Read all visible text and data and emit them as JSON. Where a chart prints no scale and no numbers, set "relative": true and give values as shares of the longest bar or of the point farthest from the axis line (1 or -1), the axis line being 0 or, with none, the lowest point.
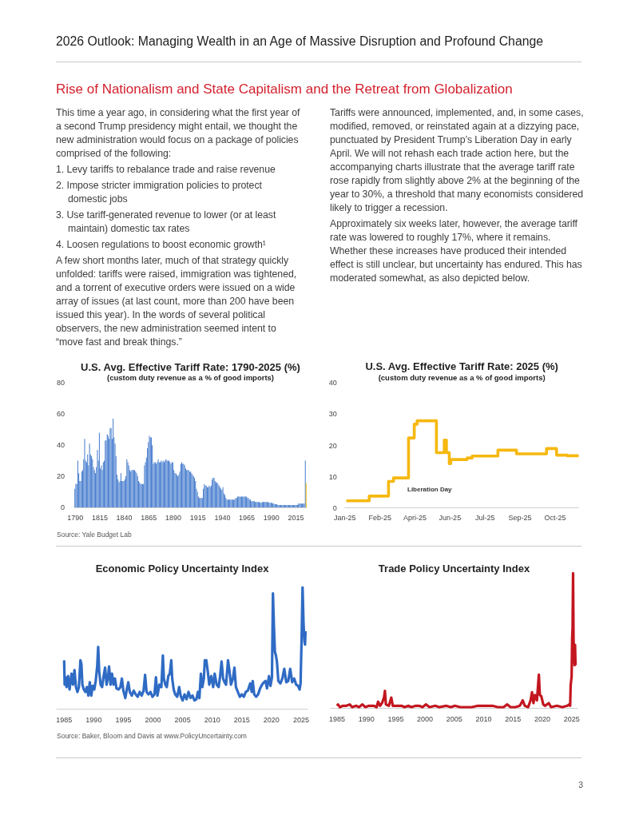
{
  "chart_data": [
    {
      "type": "other",
      "title": "2026 Outlook: Managing Wealth in an Age of Massive Disruption and Profound Change",
      "subtitle": "Rise of Nationalism and State Capitalism and the Retreat from Globalization",
      "annotations": [
        "This time a year ago, in considering what the first year of a second Trump presidency might entail, we thought the new administration would focus on a package of policies comprised of the following:",
        "1. Levy tariffs to rebalance trade and raise revenue",
        "2. Impose stricter immigration policies to protect domestic jobs",
        "3. Use tariff-generated revenue to lower (or at least maintain) domestic tax rates",
        "4. Loosen regulations to boost economic growth¹",
        "A few short months later, much of that strategy quickly unfolded: tariffs were raised, immigration was tightened, and a torrent of executive orders were issued on a wide array of issues (at last count, more than 200 have been issued this year). In the words of several political observers, the new administration seemed intent to “move fast and break things.”",
        "Tariffs were announced, implemented, and, in some cases, modified, removed, or reinstated again at a dizzying pace, punctuated by President Trump’s Liberation Day in early April. We will not rehash each trade action here, but the accompanying charts illustrate that the average tariff rate rose rapidly from slightly above 2% at the beginning of the year to 30%, a threshold that many economists considered likely to trigger a recession.",
        "Approximately six weeks later, however, the average tariff rate was lowered to roughly 17%, where it remains. Whether these increases have produced their intended effect is still unclear, but uncertainty has endured. This has moderated somewhat, as also depicted below."
      ]
    },
    {
      "type": "bar",
      "title": "U.S. Avg. Effective Tariff Rate: 1790-2025 (%)",
      "subtitle": "(custom duty revenue as a % of good imports)",
      "x": [
        1790,
        1791,
        1792,
        1793,
        1794,
        1795,
        1796,
        1797,
        1798,
        1799,
        1800,
        1801,
        1802,
        1803,
        1804,
        1805,
        1806,
        1807,
        1808,
        1809,
        1810,
        1811,
        1812,
        1813,
        1814,
        1815,
        1816,
        1817,
        1818,
        1819,
        1820,
        1821,
        1822,
        1823,
        1824,
        1825,
        1826,
        1827,
        1828,
        1829,
        1830,
        1831,
        1832,
        1833,
        1834,
        1835,
        1836,
        1837,
        1838,
        1839,
        1840,
        1841,
        1842,
        1843,
        1844,
        1845,
        1846,
        1847,
        1848,
        1849,
        1850,
        1851,
        1852,
        1853,
        1854,
        1855,
        1856,
        1857,
        1858,
        1859,
        1860,
        1861,
        1862,
        1863,
        1864,
        1865,
        1866,
        1867,
        1868,
        1869,
        1870,
        1871,
        1872,
        1873,
        1874,
        1875,
        1876,
        1877,
        1878,
        1879,
        1880,
        1881,
        1882,
        1883,
        1884,
        1885,
        1886,
        1887,
        1888,
        1889,
        1890,
        1891,
        1892,
        1893,
        1894,
        1895,
        1896,
        1897,
        1898,
        1899,
        1900,
        1901,
        1902,
        1903,
        1904,
        1905,
        1906,
        1907,
        1908,
        1909,
        1910,
        1911,
        1912,
        1913,
        1914,
        1915,
        1916,
        1917,
        1918,
        1919,
        1920,
        1921,
        1922,
        1923,
        1924,
        1925,
        1926,
        1927,
        1928,
        1929,
        1930,
        1931,
        1932,
        1933,
        1934,
        1935,
        1936,
        1937,
        1938,
        1939,
        1940,
        1941,
        1942,
        1943,
        1944,
        1945,
        1946,
        1947,
        1948,
        1949,
        1950,
        1951,
        1952,
        1953,
        1954,
        1955,
        1956,
        1957,
        1958,
        1959,
        1960,
        1961,
        1962,
        1963,
        1964,
        1965,
        1966,
        1967,
        1968,
        1969,
        1970,
        1971,
        1972,
        1973,
        1974,
        1975,
        1976,
        1977,
        1978,
        1979,
        1980,
        1981,
        1982,
        1983,
        1984,
        1985,
        1986,
        1987,
        1988,
        1989,
        1990,
        1991,
        1992,
        1993,
        1994,
        1995,
        1996,
        1997,
        1998,
        1999,
        2000,
        2001,
        2002,
        2003,
        2004,
        2005,
        2006,
        2007,
        2008,
        2009,
        2010,
        2011,
        2012,
        2013,
        2014,
        2015,
        2016,
        2017,
        2018,
        2019,
        2020,
        2021,
        2022,
        2023,
        2024,
        2025
      ],
      "series": [
        {
          "color": "#4a7fcf",
          "values": [
            12,
            15,
            15,
            30,
            22,
            17,
            17,
            23,
            24,
            31,
            44,
            30,
            29,
            34,
            27,
            41,
            34,
            33,
            31,
            26,
            24,
            22,
            26,
            37,
            30,
            48,
            25,
            27,
            24,
            29,
            30,
            43,
            43,
            47,
            46,
            44,
            51,
            51,
            44,
            57,
            45,
            41,
            33,
            21,
            18,
            16,
            17,
            22,
            17,
            17,
            17,
            18,
            20,
            31,
            29,
            27,
            24,
            23,
            24,
            24,
            24,
            24,
            23,
            22,
            20,
            17,
            16,
            15,
            15,
            15,
            15,
            27,
            29,
            32,
            38,
            42,
            46,
            45,
            45,
            40,
            28,
            29,
            29,
            28,
            29,
            31,
            29,
            29,
            30,
            29,
            30,
            29,
            30,
            31,
            30,
            30,
            30,
            29,
            28,
            29,
            29,
            24,
            22,
            22,
            21,
            20,
            21,
            23,
            28,
            29,
            28,
            28,
            27,
            25,
            24,
            24,
            24,
            23,
            23,
            22,
            21,
            20,
            19,
            17,
            12,
            10,
            7,
            6,
            6,
            6,
            6,
            12,
            15,
            14,
            14,
            13,
            13,
            14,
            13,
            14,
            18,
            19,
            19,
            17,
            16,
            16,
            15,
            14,
            13,
            12,
            11,
            13,
            9,
            8,
            6,
            5,
            5,
            5,
            5,
            5,
            5,
            5,
            5,
            5,
            6,
            6,
            7,
            7,
            7,
            7,
            7,
            7,
            7,
            7,
            7,
            7,
            6,
            6,
            5,
            5,
            4,
            4,
            4,
            4,
            3.5,
            3.5,
            3.5,
            3.5,
            3.5,
            3,
            3,
            3.5,
            3.5,
            3.5,
            3.5,
            3.5,
            3.5,
            3.5,
            3,
            3,
            3,
            3,
            2.5,
            2.5,
            2,
            2,
            2,
            1.5,
            1.5,
            1.5,
            1.5,
            1.5,
            1.5,
            1.5,
            1.5,
            1.5,
            1.5,
            1.5,
            1.5,
            1.5,
            1.5,
            1.5,
            1.5,
            1.5,
            1.5,
            1.5,
            1.5,
            1.5,
            2.5,
            2.5,
            2.5,
            2.5,
            2.5,
            2.5,
            2.5,
            30
          ]
        },
        {
          "color": "#f2c21b",
          "x": [
            2025
          ],
          "values": [
            15.5
          ]
        }
      ],
      "xlim": [
        1789,
        2026
      ],
      "xticks": [
        1790,
        1815,
        1840,
        1865,
        1890,
        1915,
        1940,
        1965,
        1990,
        2015
      ],
      "ylim": [
        0,
        80
      ],
      "yticks": [
        0,
        20,
        40,
        60,
        80
      ],
      "annotations": [
        "Source: Yale Budget Lab"
      ]
    },
    {
      "type": "step",
      "title": "U.S. Avg. Effective Tariff Rate: 2025 (%)",
      "subtitle": "(custom duty revenue as a % of good imports)",
      "color": "#f6b80f",
      "x": [
        "2025-01-08",
        "2025-02-09",
        "2025-03-08",
        "2025-03-15",
        "2025-04-05",
        "2025-04-13",
        "2025-04-17",
        "2025-05-14",
        "2025-05-25",
        "2025-05-28",
        "2025-06-01",
        "2025-06-03",
        "2025-06-26",
        "2025-07-03",
        "2025-08-08",
        "2025-09-03",
        "2025-10-15",
        "2025-10-29",
        "2025-11-13",
        "2025-11-29"
      ],
      "values": [
        2.3,
        3.8,
        8.5,
        9.6,
        22.4,
        26.8,
        27.9,
        17.7,
        21.7,
        17.7,
        14.2,
        15.5,
        16.0,
        16.6,
        18.5,
        17.3,
        19.0,
        16.9,
        16.7,
        16.7
      ],
      "xlim": [
        "2025-01-06",
        "2025-11-29"
      ],
      "xticks": [
        {
          "value": "2025-01-06",
          "label": "Jan-25"
        },
        {
          "value": "2025-02-24",
          "label": "Feb-25"
        },
        {
          "value": "2025-04-14",
          "label": "Apri-25"
        },
        {
          "value": "2025-06-02",
          "label": "Jun-25"
        },
        {
          "value": "2025-07-21",
          "label": "Jul-25"
        },
        {
          "value": "2025-09-08",
          "label": "Sep-25"
        },
        {
          "value": "2025-10-27",
          "label": "Oct-25"
        }
      ],
      "ylim": [
        0,
        40
      ],
      "yticks": [
        0,
        10,
        20,
        30,
        40
      ],
      "annotations": [
        "Liberation Day"
      ]
    },
    {
      "type": "line",
      "title": "Economic Policy Uncertainty Index",
      "relative": true,
      "color": "#2f6bc4",
      "x": [
        "1985-01",
        "1985-02",
        "1985-04",
        "1985-06",
        "1985-09",
        "1985-12",
        "1986-04",
        "1986-07",
        "1986-10",
        "1987-01",
        "1987-04",
        "1987-07",
        "1987-10",
        "1987-12",
        "1988-02",
        "1988-05",
        "1988-08",
        "1988-11",
        "1989-02",
        "1989-05",
        "1989-08",
        "1989-11",
        "1990-02",
        "1990-05",
        "1990-08",
        "1990-10",
        "1990-12",
        "1991-03",
        "1991-06",
        "1991-09",
        "1991-12",
        "1992-03",
        "1992-06",
        "1992-08",
        "1992-11",
        "1993-02",
        "1993-05",
        "1993-08",
        "1993-11",
        "1994-03",
        "1994-07",
        "1994-10",
        "1995-01",
        "1995-05",
        "1995-08",
        "1995-11",
        "1996-02",
        "1996-06",
        "1996-10",
        "1997-02",
        "1997-06",
        "1997-10",
        "1998-02",
        "1998-06",
        "1998-09",
        "1998-12",
        "1999-04",
        "1999-08",
        "1999-12",
        "2000-04",
        "2000-07",
        "2000-10",
        "2001-02",
        "2001-06",
        "2001-09",
        "2001-11",
        "2002-02",
        "2002-05",
        "2002-08",
        "2002-11",
        "2003-02",
        "2003-04",
        "2003-07",
        "2003-10",
        "2004-02",
        "2004-06",
        "2004-09",
        "2005-01",
        "2005-05",
        "2005-09",
        "2006-01",
        "2006-05",
        "2006-09",
        "2007-01",
        "2007-05",
        "2007-08",
        "2007-11",
        "2008-02",
        "2008-05",
        "2008-08",
        "2008-10",
        "2009-01",
        "2009-04",
        "2009-07",
        "2009-11",
        "2010-03",
        "2010-06",
        "2010-10",
        "2011-02",
        "2011-05",
        "2011-08",
        "2011-11",
        "2012-02",
        "2012-05",
        "2012-09",
        "2012-12",
        "2013-03",
        "2013-07",
        "2013-10",
        "2014-01",
        "2014-05",
        "2014-09",
        "2015-01",
        "2015-05",
        "2015-09",
        "2016-01",
        "2016-06",
        "2016-09",
        "2016-11",
        "2017-02",
        "2017-06",
        "2017-10",
        "2018-02",
        "2018-06",
        "2018-10",
        "2019-01",
        "2019-04",
        "2019-08",
        "2019-11",
        "2020-02",
        "2020-04",
        "2020-06",
        "2020-08",
        "2020-10",
        "2020-12",
        "2021-03",
        "2021-07",
        "2021-11",
        "2022-03",
        "2022-07",
        "2022-11",
        "2023-03",
        "2023-07",
        "2023-11",
        "2024-03",
        "2024-07",
        "2024-10",
        "2024-12",
        "2025-01",
        "2025-02",
        "2025-04",
        "2025-05",
        "2025-06",
        "2025-07",
        "2025-08",
        "2025-09",
        "2025-10"
      ],
      "values": [
        0.4,
        0.2,
        0.26,
        0.18,
        0.27,
        0.16,
        0.29,
        0.2,
        0.32,
        0.18,
        0.14,
        0.18,
        0.4,
        0.37,
        0.2,
        0.16,
        0.14,
        0.18,
        0.11,
        0.22,
        0.11,
        0.19,
        0.16,
        0.23,
        0.35,
        0.51,
        0.31,
        0.2,
        0.18,
        0.27,
        0.34,
        0.2,
        0.26,
        0.35,
        0.2,
        0.29,
        0.2,
        0.25,
        0.17,
        0.16,
        0.18,
        0.25,
        0.15,
        0.09,
        0.16,
        0.22,
        0.14,
        0.11,
        0.15,
        0.12,
        0.1,
        0.14,
        0.11,
        0.15,
        0.28,
        0.14,
        0.12,
        0.14,
        0.1,
        0.12,
        0.26,
        0.11,
        0.2,
        0.18,
        0.44,
        0.25,
        0.2,
        0.18,
        0.27,
        0.29,
        0.4,
        0.25,
        0.16,
        0.12,
        0.1,
        0.18,
        0.11,
        0.07,
        0.12,
        0.08,
        0.14,
        0.09,
        0.11,
        0.07,
        0.08,
        0.14,
        0.09,
        0.29,
        0.18,
        0.25,
        0.4,
        0.4,
        0.31,
        0.2,
        0.27,
        0.18,
        0.29,
        0.2,
        0.18,
        0.27,
        0.39,
        0.25,
        0.22,
        0.2,
        0.4,
        0.31,
        0.2,
        0.25,
        0.34,
        0.18,
        0.14,
        0.1,
        0.12,
        0.1,
        0.14,
        0.15,
        0.21,
        0.14,
        0.23,
        0.12,
        0.1,
        0.12,
        0.17,
        0.2,
        0.22,
        0.23,
        0.17,
        0.27,
        0.19,
        0.26,
        0.95,
        0.68,
        0.47,
        0.44,
        0.39,
        0.23,
        0.21,
        0.25,
        0.33,
        0.22,
        0.23,
        0.33,
        0.22,
        0.25,
        0.2,
        0.19,
        0.16,
        0.21,
        0.4,
        0.57,
        1.0,
        0.86,
        0.7,
        0.62,
        0.55,
        0.53,
        0.64
      ],
      "xlim": [
        "1983-10",
        "2026-02"
      ],
      "xticks": [
        "1985",
        "1990",
        "1995",
        "2000",
        "2005",
        "2010",
        "2015",
        "2020",
        "2025"
      ],
      "annotations": [
        "Source: Baker, Bloom and Davis at www.PolicyUncertainty.com"
      ]
    },
    {
      "type": "line",
      "title": "Trade Policy Uncertainty Index",
      "relative": true,
      "color": "#c3161f",
      "x": [
        "1985-01",
        "1985-03",
        "1985-07",
        "1986-01",
        "1986-08",
        "1987-03",
        "1987-08",
        "1988-04",
        "1988-10",
        "1989-05",
        "1989-11",
        "1990-06",
        "1991-04",
        "1991-10",
        "1992-01",
        "1992-05",
        "1992-09",
        "1993-01",
        "1993-03",
        "1993-05",
        "1993-11",
        "1994-04",
        "1994-07",
        "1995-04",
        "1996-01",
        "1996-07",
        "1997-03",
        "1997-09",
        "1998-06",
        "1999-01",
        "1999-08",
        "2000-03",
        "2000-10",
        "2001-10",
        "2002-06",
        "2003-08",
        "2004-06",
        "2005-02",
        "2006-01",
        "2007-01",
        "2008-01",
        "2009-01",
        "2010-06",
        "2011-07",
        "2012-06",
        "2013-06",
        "2014-01",
        "2014-08",
        "2015-06",
        "2016-03",
        "2016-09",
        "2017-01",
        "2017-08",
        "2018-01",
        "2018-04",
        "2018-07",
        "2018-10",
        "2019-02",
        "2019-06",
        "2019-08",
        "2019-11",
        "2020-03",
        "2020-07",
        "2021-02",
        "2021-07",
        "2022-07",
        "2023-06",
        "2024-04",
        "2024-08",
        "2024-10",
        "2024-11",
        "2025-01",
        "2025-02",
        "2025-03",
        "2025-04",
        "2025-05",
        "2025-06",
        "2025-07",
        "2025-08",
        "2025-09"
      ],
      "values": [
        0.02,
        0.03,
        0.01,
        0.02,
        0.02,
        0.03,
        0.01,
        0.02,
        0.01,
        0.03,
        0.01,
        0.02,
        0.02,
        0.01,
        0.05,
        0.02,
        0.04,
        0.08,
        0.13,
        0.03,
        0.02,
        0.08,
        0.02,
        0.02,
        0.02,
        0.01,
        0.02,
        0.01,
        0.02,
        0.02,
        0.01,
        0.03,
        0.01,
        0.02,
        0.01,
        0.02,
        0.01,
        0.02,
        0.01,
        0.01,
        0.01,
        0.02,
        0.02,
        0.02,
        0.01,
        0.01,
        0.03,
        0.01,
        0.01,
        0.02,
        0.06,
        0.02,
        0.01,
        0.06,
        0.12,
        0.04,
        0.1,
        0.06,
        0.25,
        0.1,
        0.09,
        0.03,
        0.02,
        0.04,
        0.01,
        0.02,
        0.01,
        0.02,
        0.03,
        0.02,
        0.17,
        0.24,
        0.51,
        0.6,
        1.0,
        0.51,
        0.4,
        0.32,
        0.47,
        0.32
      ],
      "xlim": [
        "1983-12",
        "2026-01"
      ],
      "xticks": [
        "1985",
        "1990",
        "1995",
        "2000",
        "2005",
        "2010",
        "2015",
        "2020",
        "2025"
      ]
    },
    {
      "type": "other",
      "annotations": [
        "3"
      ]
    }
  ]
}
